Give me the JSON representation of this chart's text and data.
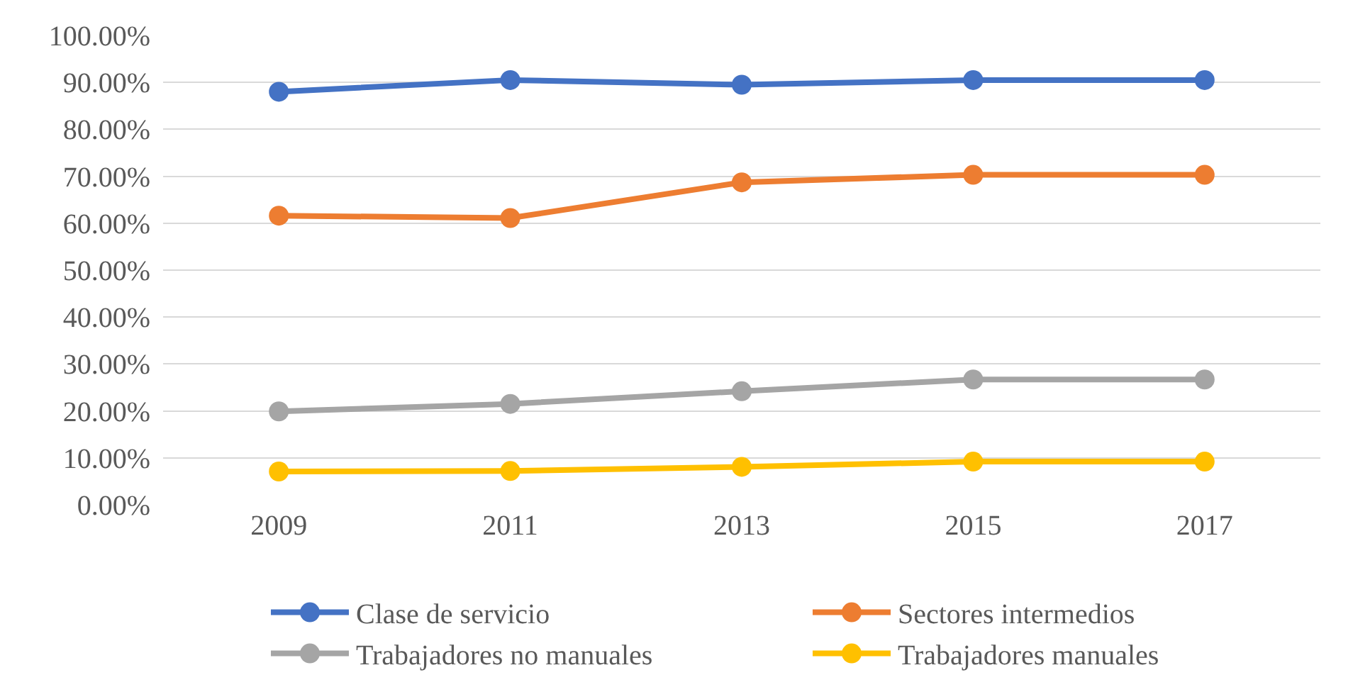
{
  "chart_data": {
    "type": "line",
    "categories": [
      "2009",
      "2011",
      "2013",
      "2015",
      "2017"
    ],
    "series": [
      {
        "name": "Clase de servicio",
        "color": "#4472c4",
        "values": [
          88.0,
          90.5,
          89.5,
          90.5,
          90.5
        ]
      },
      {
        "name": "Sectores intermedios",
        "color": "#ed7d31",
        "values": [
          61.6,
          61.1,
          68.7,
          70.3,
          70.3
        ]
      },
      {
        "name": "Trabajadores no manuales",
        "color": "#a5a5a5",
        "values": [
          19.9,
          21.5,
          24.2,
          26.7,
          26.7
        ]
      },
      {
        "name": "Trabajadores manuales",
        "color": "#ffc000",
        "values": [
          7.1,
          7.2,
          8.1,
          9.2,
          9.2
        ]
      }
    ],
    "ylim": [
      0,
      100
    ],
    "yticks": [
      {
        "value": 0,
        "label": "0.00%"
      },
      {
        "value": 10,
        "label": "10.00%"
      },
      {
        "value": 20,
        "label": "20.00%"
      },
      {
        "value": 30,
        "label": "30.00%"
      },
      {
        "value": 40,
        "label": "40.00%"
      },
      {
        "value": 50,
        "label": "50.00%"
      },
      {
        "value": 60,
        "label": "60.00%"
      },
      {
        "value": 70,
        "label": "70.00%"
      },
      {
        "value": 80,
        "label": "80.00%"
      },
      {
        "value": 90,
        "label": "90.00%"
      },
      {
        "value": 100,
        "label": "100.00%"
      }
    ],
    "grid": "y",
    "legend": "bottom",
    "marker": "circle",
    "line_style": "solid"
  }
}
